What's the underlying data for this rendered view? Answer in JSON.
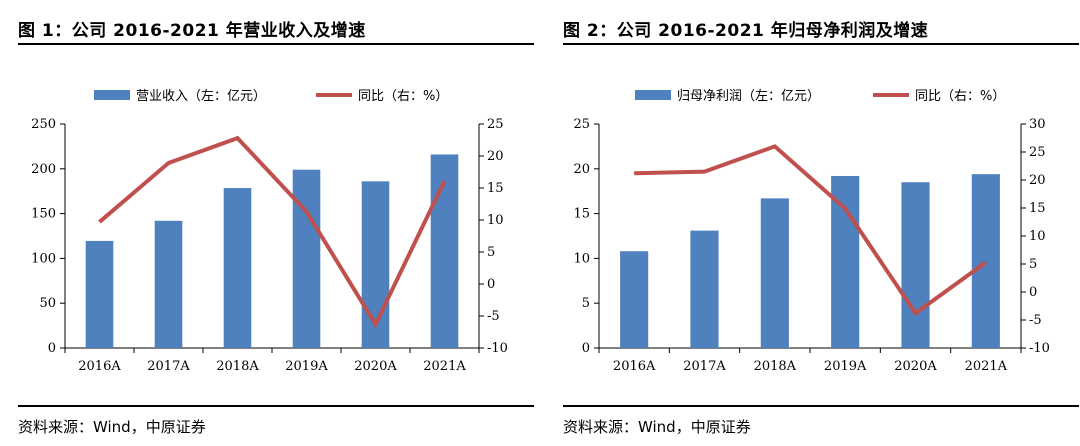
{
  "charts": [
    {
      "title": "图 1：公司 2016-2021 年营业收入及增速",
      "source": "资料来源：Wind，中原证券",
      "chart_data": {
        "type": "bar",
        "categories": [
          "2016A",
          "2017A",
          "2018A",
          "2019A",
          "2020A",
          "2021A"
        ],
        "series": [
          {
            "name": "营业收入（左：亿元）",
            "type": "bar",
            "axis": "left",
            "color": "#4E81BD",
            "values": [
              119.5,
              142,
              178.5,
              199,
              186,
              216
            ]
          },
          {
            "name": "同比（右：%）",
            "type": "line",
            "axis": "right",
            "color": "#C0504D",
            "values": [
              9.7,
              18.9,
              22.8,
              11.3,
              -6.3,
              16.1
            ]
          }
        ],
        "ylim_left": [
          0,
          250
        ],
        "yticks_left": [
          0,
          50,
          100,
          150,
          200,
          250
        ],
        "ylim_right": [
          -10,
          25
        ],
        "yticks_right": [
          -10,
          -5,
          0,
          5,
          10,
          15,
          20,
          25
        ],
        "grid": false,
        "legend": "top"
      }
    },
    {
      "title": "图 2：公司 2016-2021 年归母净利润及增速",
      "source": "资料来源：Wind，中原证券",
      "chart_data": {
        "type": "bar",
        "categories": [
          "2016A",
          "2017A",
          "2018A",
          "2019A",
          "2020A",
          "2021A"
        ],
        "series": [
          {
            "name": "归母净利润（左：亿元）",
            "type": "bar",
            "axis": "left",
            "color": "#4E81BD",
            "values": [
              10.8,
              13.1,
              16.7,
              19.2,
              18.5,
              19.4
            ]
          },
          {
            "name": "同比（右：%）",
            "type": "line",
            "axis": "right",
            "color": "#C0504D",
            "values": [
              21.2,
              21.5,
              26.0,
              14.9,
              -3.8,
              5.3
            ]
          }
        ],
        "ylim_left": [
          0,
          25
        ],
        "yticks_left": [
          0,
          5,
          10,
          15,
          20,
          25
        ],
        "ylim_right": [
          -10,
          30
        ],
        "yticks_right": [
          -10,
          -5,
          0,
          5,
          10,
          15,
          20,
          25,
          30
        ],
        "grid": false,
        "legend": "top"
      }
    }
  ]
}
